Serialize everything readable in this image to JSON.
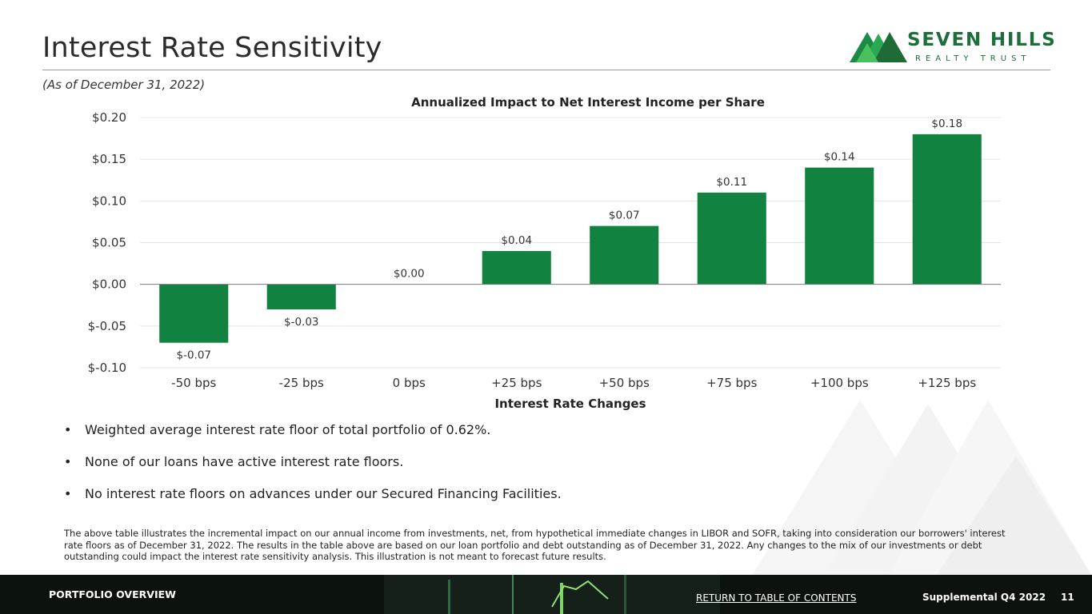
{
  "header": {
    "title": "Interest Rate Sensitivity",
    "as_of": "(As of December 31, 2022)"
  },
  "logo": {
    "name": "SEVEN HILLS",
    "tagline": "REALTY TRUST",
    "icon": "mountains-icon"
  },
  "colors": {
    "bar": "#11823f",
    "brand": "#1d6e3a",
    "footer_bg": "#0c130f"
  },
  "chart_data": {
    "type": "bar",
    "title": "Annualized Impact to Net Interest Income per Share",
    "xlabel": "Interest Rate Changes",
    "ylabel": "",
    "categories": [
      "-50 bps",
      "-25 bps",
      "0 bps",
      "+25 bps",
      "+50 bps",
      "+75 bps",
      "+100 bps",
      "+125 bps"
    ],
    "values": [
      -0.07,
      -0.03,
      0.0,
      0.04,
      0.07,
      0.11,
      0.14,
      0.18
    ],
    "data_labels": [
      "$-0.07",
      "$-0.03",
      "$0.00",
      "$0.04",
      "$0.07",
      "$0.11",
      "$0.14",
      "$0.18"
    ],
    "ylim": [
      -0.1,
      0.2
    ],
    "yticks": [
      -0.1,
      -0.05,
      0.0,
      0.05,
      0.1,
      0.15,
      0.2
    ],
    "ytick_labels": [
      "$-0.10",
      "$-0.05",
      "$0.00",
      "$0.05",
      "$0.10",
      "$0.15",
      "$0.20"
    ],
    "grid": true,
    "legend": "none"
  },
  "bullets": [
    "Weighted average interest rate floor of total portfolio of 0.62%.",
    "None of our loans have active interest rate floors.",
    "No interest rate floors on advances under our Secured Financing Facilities."
  ],
  "footnote": "The above table illustrates the incremental impact on our annual income from investments, net, from hypothetical immediate changes in LIBOR and SOFR, taking into consideration our borrowers' interest rate floors as of December 31, 2022. The results in the table above are based on our loan portfolio and debt outstanding as of December 31, 2022. Any changes to the mix of our investments or debt outstanding could impact the interest rate sensitivity analysis. This illustration is not meant to forecast future results.",
  "footer": {
    "section": "PORTFOLIO OVERVIEW",
    "toc_link": "RETURN TO TABLE OF CONTENTS",
    "doc": "Supplemental Q4 2022",
    "page": "11"
  }
}
